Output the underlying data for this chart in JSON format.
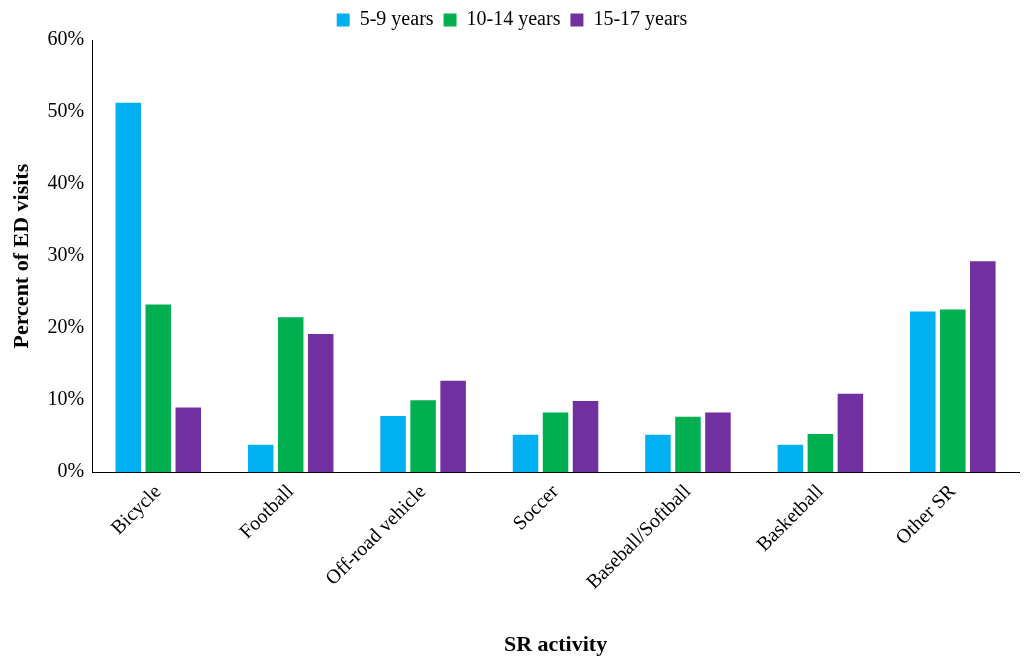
{
  "chart_data": {
    "type": "bar",
    "xlabel": "SR activity",
    "ylabel": "Percent of ED visits",
    "categories": [
      "Bicycle",
      "Football",
      "Off-road vehicle",
      "Soccer",
      "Baseball/Softball",
      "Basketball",
      "Other SR"
    ],
    "series": [
      {
        "name": "5-9 years",
        "color": "#00b0f0",
        "values": [
          51.3,
          3.8,
          7.8,
          5.2,
          5.2,
          3.8,
          22.3
        ]
      },
      {
        "name": "10-14 years",
        "color": "#00b050",
        "values": [
          23.3,
          21.5,
          10.0,
          8.3,
          7.7,
          5.3,
          22.6
        ]
      },
      {
        "name": "15-17 years",
        "color": "#7030a0",
        "values": [
          9.0,
          19.2,
          12.7,
          9.9,
          8.3,
          10.9,
          29.3
        ]
      }
    ],
    "ylim": [
      0,
      60
    ],
    "yticks": [
      {
        "value": 0,
        "label": "0%"
      },
      {
        "value": 10,
        "label": "10%"
      },
      {
        "value": 20,
        "label": "20%"
      },
      {
        "value": 30,
        "label": "30%"
      },
      {
        "value": 40,
        "label": "40%"
      },
      {
        "value": 50,
        "label": "50%"
      },
      {
        "value": 60,
        "label": "60%"
      }
    ],
    "grid": false,
    "legend": "top"
  }
}
